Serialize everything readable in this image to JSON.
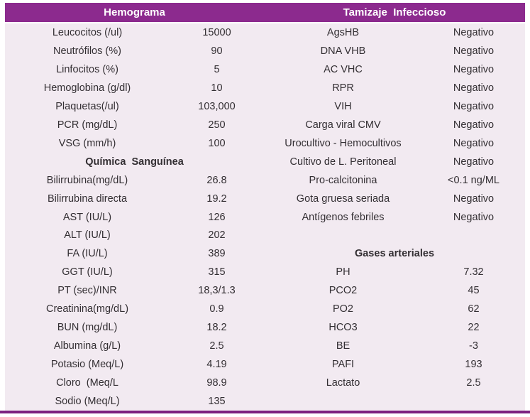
{
  "colors": {
    "header_bg": "#8c2a8e",
    "header_text": "#ffffff",
    "body_bg": "#f2eaf1",
    "text": "#332f33",
    "bottom_line": "#7c2180"
  },
  "header": {
    "left": "Hemograma",
    "right": "Tamizaje  Infeccioso"
  },
  "rows": [
    {
      "left": {
        "type": "data",
        "label": "Leucocitos (/ul)",
        "value": "15000"
      },
      "right": {
        "type": "data",
        "label": "AgsHB",
        "value": "Negativo"
      }
    },
    {
      "left": {
        "type": "data",
        "label": "Neutrófilos (%)",
        "value": "90"
      },
      "right": {
        "type": "data",
        "label": "DNA VHB",
        "value": "Negativo"
      }
    },
    {
      "left": {
        "type": "data",
        "label": "Linfocitos (%)",
        "value": "5"
      },
      "right": {
        "type": "data",
        "label": "AC VHC",
        "value": "Negativo"
      }
    },
    {
      "left": {
        "type": "data",
        "label": "Hemoglobina (g/dl)",
        "value": "10"
      },
      "right": {
        "type": "data",
        "label": "RPR",
        "value": "Negativo"
      }
    },
    {
      "left": {
        "type": "data",
        "label": "Plaquetas(/ul)",
        "value": "103,000"
      },
      "right": {
        "type": "data",
        "label": "VIH",
        "value": "Negativo"
      }
    },
    {
      "left": {
        "type": "data",
        "label": "PCR (mg/dL)",
        "value": "250"
      },
      "right": {
        "type": "data",
        "label": "Carga viral CMV",
        "value": "Negativo"
      }
    },
    {
      "left": {
        "type": "data",
        "label": "VSG (mm/h)",
        "value": "100"
      },
      "right": {
        "type": "data",
        "label": "Urocultivo - Hemocultivos",
        "value": "Negativo"
      }
    },
    {
      "left": {
        "type": "section",
        "label": "Química  Sanguínea"
      },
      "right": {
        "type": "data",
        "label": "Cultivo de L. Peritoneal",
        "value": "Negativo"
      }
    },
    {
      "left": {
        "type": "data",
        "label": "Bilirrubina(mg/dL)",
        "value": "26.8"
      },
      "right": {
        "type": "data",
        "label": "Pro-calcitonina",
        "value": "<0.1 ng/ML"
      }
    },
    {
      "left": {
        "type": "data",
        "label": "Bilirrubina directa",
        "value": "19.2"
      },
      "right": {
        "type": "data",
        "label": "Gota gruesa seriada",
        "value": "Negativo"
      }
    },
    {
      "left": {
        "type": "data",
        "label": "AST (IU/L)",
        "value": "126"
      },
      "right": {
        "type": "data",
        "label": "Antígenos febriles",
        "value": "Negativo"
      }
    },
    {
      "left": {
        "type": "data",
        "label": "ALT (IU/L)",
        "value": "202"
      },
      "right": {
        "type": "empty",
        "label": "",
        "value": ""
      }
    },
    {
      "left": {
        "type": "data",
        "label": "FA (IU/L)",
        "value": "389"
      },
      "right": {
        "type": "section",
        "label": "Gases arteriales"
      }
    },
    {
      "left": {
        "type": "data",
        "label": "GGT (IU/L)",
        "value": "315"
      },
      "right": {
        "type": "data",
        "label": "PH",
        "value": "7.32"
      }
    },
    {
      "left": {
        "type": "data",
        "label": "PT (sec)/INR",
        "value": "18,3/1.3"
      },
      "right": {
        "type": "data",
        "label": "PCO2",
        "value": "45"
      }
    },
    {
      "left": {
        "type": "data",
        "label": "Creatinina(mg/dL)",
        "value": "0.9"
      },
      "right": {
        "type": "data",
        "label": "PO2",
        "value": "62"
      }
    },
    {
      "left": {
        "type": "data",
        "label": "BUN (mg/dL)",
        "value": "18.2"
      },
      "right": {
        "type": "data",
        "label": "HCO3",
        "value": "22"
      }
    },
    {
      "left": {
        "type": "data",
        "label": "Albumina (g/L)",
        "value": "2.5"
      },
      "right": {
        "type": "data",
        "label": "BE",
        "value": "-3"
      }
    },
    {
      "left": {
        "type": "data",
        "label": "Potasio (Meq/L)",
        "value": "4.19"
      },
      "right": {
        "type": "data",
        "label": "PAFI",
        "value": "193"
      }
    },
    {
      "left": {
        "type": "data",
        "label": "Cloro  (Meq/L",
        "value": "98.9"
      },
      "right": {
        "type": "data",
        "label": "Lactato",
        "value": "2.5"
      }
    },
    {
      "left": {
        "type": "data",
        "label": "Sodio (Meq/L)",
        "value": "135"
      },
      "right": {
        "type": "empty",
        "label": "",
        "value": ""
      }
    }
  ]
}
